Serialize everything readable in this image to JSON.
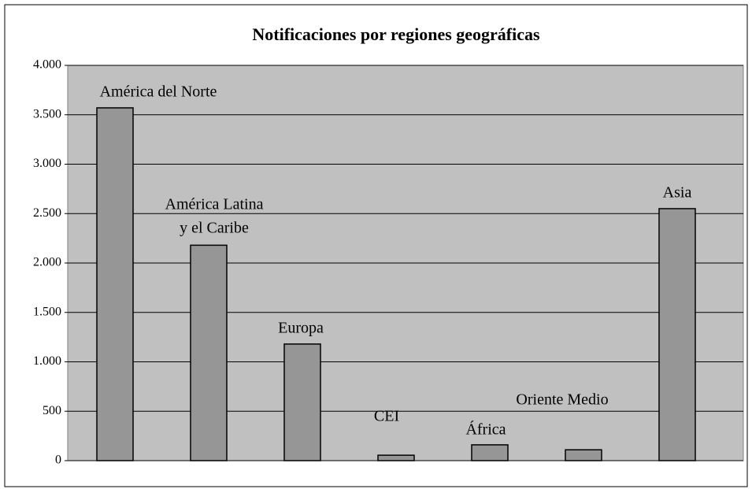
{
  "chart_data": {
    "type": "bar",
    "title": "Notificaciones por regiones geográficas",
    "categories": [
      [
        "América del Norte"
      ],
      [
        "América Latina",
        "y el Caribe"
      ],
      [
        "Europa"
      ],
      [
        "CEI"
      ],
      [
        "África"
      ],
      [
        "Oriente Medio"
      ],
      [
        "Asia"
      ]
    ],
    "values": [
      3570,
      2180,
      1180,
      55,
      160,
      110,
      2550
    ],
    "color": "#969696",
    "ylim": [
      0,
      4000
    ],
    "yticks": [
      0,
      500,
      {
        "value": 1000,
        "label": "1.000"
      },
      {
        "value": 1500,
        "label": "1.500"
      },
      {
        "value": 2000,
        "label": "2.000"
      },
      {
        "value": 2500,
        "label": "2.500"
      },
      {
        "value": 3000,
        "label": "3.000"
      },
      {
        "value": 3500,
        "label": "3.500"
      },
      {
        "value": 4000,
        "label": "4.000"
      }
    ],
    "grid": true
  }
}
